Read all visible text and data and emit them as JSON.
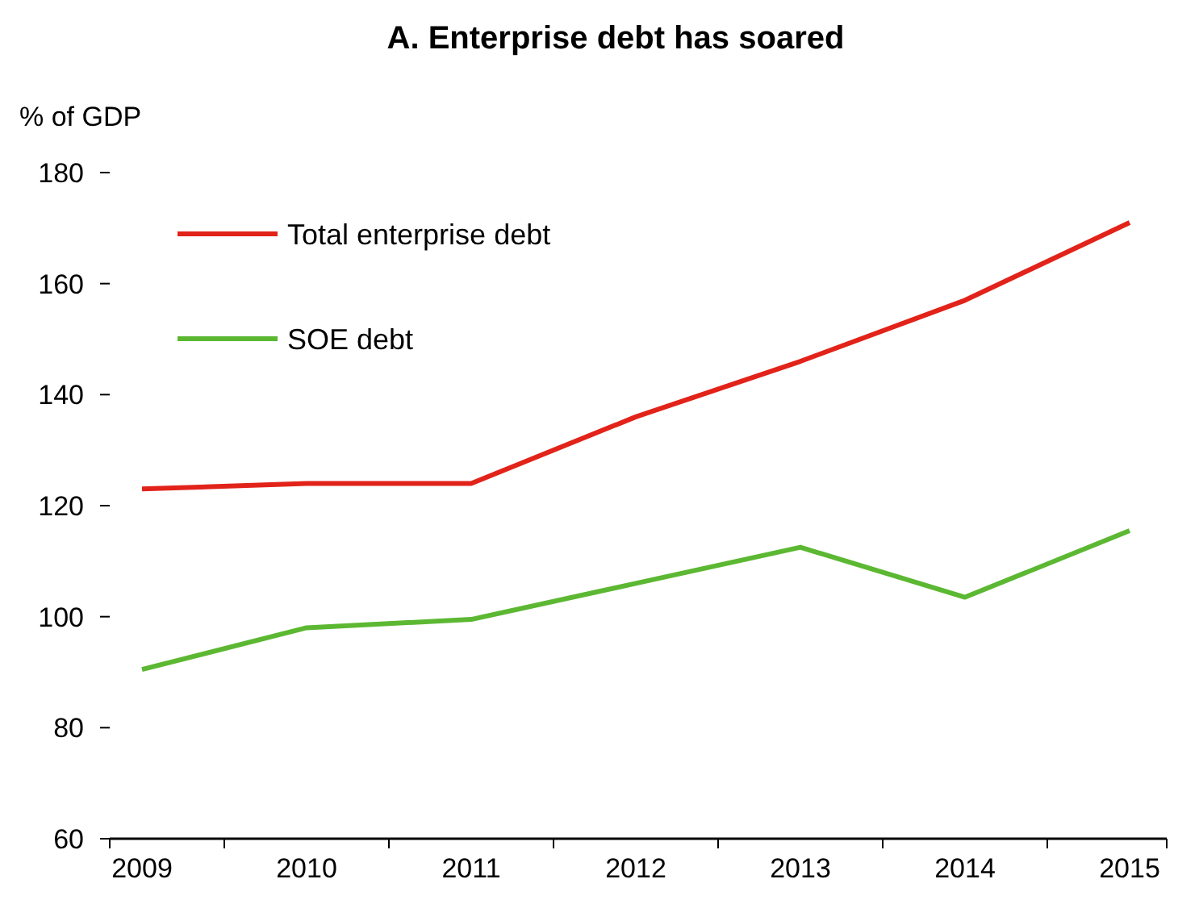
{
  "chart_data": {
    "type": "line",
    "title": "A. Enterprise debt has soared",
    "ylabel": "% of GDP",
    "categories": [
      "2009",
      "2010",
      "2011",
      "2012",
      "2013",
      "2014",
      "2015"
    ],
    "series": [
      {
        "name": "Total enterprise debt",
        "color": "#e2231a",
        "values": [
          123,
          124,
          124,
          136,
          146,
          157,
          171
        ]
      },
      {
        "name": "SOE debt",
        "color": "#5cb832",
        "values": [
          90.5,
          98,
          99.5,
          106,
          112.5,
          103.5,
          115.5
        ]
      }
    ],
    "ylim": [
      60,
      180
    ],
    "yticks": [
      60,
      80,
      100,
      120,
      140,
      160,
      180
    ],
    "grid": false,
    "legend": "top left",
    "marker": "none",
    "line_style": "solid"
  }
}
